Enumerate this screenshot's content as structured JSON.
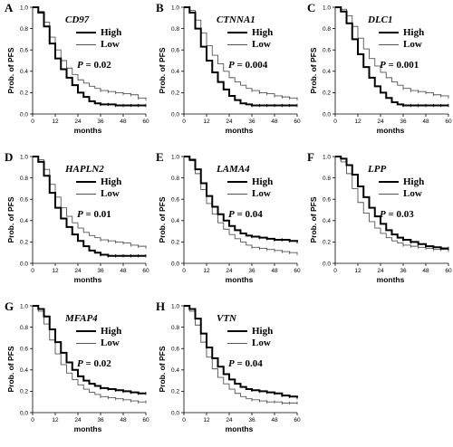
{
  "figure": {
    "x_tick_labels": [
      "0",
      "12",
      "24",
      "36",
      "48",
      "60"
    ],
    "y_tick_labels": [
      "0.0",
      "0.2",
      "0.4",
      "0.6",
      "0.8",
      "1.0"
    ]
  },
  "colors": {
    "high": "#000000",
    "low": "#555555"
  },
  "chart_data": [
    {
      "type": "line",
      "panel": "A",
      "gene": "CD97",
      "pvalue": "0.02",
      "xlabel": "months",
      "ylabel": "Prob. of PFS",
      "xlim": [
        0,
        60
      ],
      "ylim": [
        0,
        1
      ],
      "grid": false,
      "legend_position": "top-right",
      "series": [
        {
          "name": "High",
          "style": "thick",
          "x": [
            0,
            3,
            6,
            9,
            12,
            15,
            18,
            21,
            24,
            27,
            30,
            33,
            36,
            40,
            44,
            48,
            52,
            56,
            60
          ],
          "y": [
            1.0,
            0.95,
            0.82,
            0.66,
            0.52,
            0.42,
            0.34,
            0.27,
            0.2,
            0.16,
            0.12,
            0.1,
            0.09,
            0.09,
            0.08,
            0.08,
            0.08,
            0.08,
            0.08
          ]
        },
        {
          "name": "Low",
          "style": "thin",
          "x": [
            0,
            3,
            6,
            9,
            12,
            15,
            18,
            21,
            24,
            27,
            30,
            33,
            36,
            40,
            44,
            48,
            52,
            56,
            60
          ],
          "y": [
            1.0,
            0.96,
            0.86,
            0.72,
            0.6,
            0.5,
            0.43,
            0.37,
            0.32,
            0.29,
            0.26,
            0.24,
            0.22,
            0.21,
            0.2,
            0.19,
            0.18,
            0.15,
            0.14
          ]
        }
      ]
    },
    {
      "type": "line",
      "panel": "B",
      "gene": "CTNNA1",
      "pvalue": "0.004",
      "xlabel": "months",
      "ylabel": "Prob. of PFS",
      "xlim": [
        0,
        60
      ],
      "ylim": [
        0,
        1
      ],
      "grid": false,
      "legend_position": "top-right",
      "series": [
        {
          "name": "High",
          "style": "thick",
          "x": [
            0,
            3,
            6,
            9,
            12,
            15,
            18,
            21,
            24,
            27,
            30,
            33,
            36,
            40,
            44,
            48,
            52,
            56,
            60
          ],
          "y": [
            1.0,
            0.95,
            0.8,
            0.63,
            0.5,
            0.39,
            0.3,
            0.23,
            0.17,
            0.13,
            0.1,
            0.09,
            0.08,
            0.08,
            0.08,
            0.08,
            0.08,
            0.08,
            0.08
          ]
        },
        {
          "name": "Low",
          "style": "thin",
          "x": [
            0,
            3,
            6,
            9,
            12,
            15,
            18,
            21,
            24,
            27,
            30,
            33,
            36,
            40,
            44,
            48,
            52,
            56,
            60
          ],
          "y": [
            1.0,
            0.97,
            0.88,
            0.76,
            0.64,
            0.55,
            0.47,
            0.4,
            0.34,
            0.3,
            0.27,
            0.24,
            0.22,
            0.2,
            0.19,
            0.17,
            0.16,
            0.15,
            0.14
          ]
        }
      ]
    },
    {
      "type": "line",
      "panel": "C",
      "gene": "DLC1",
      "pvalue": "0.001",
      "xlabel": "months",
      "ylabel": "Prob. of PFS",
      "xlim": [
        0,
        60
      ],
      "ylim": [
        0,
        1
      ],
      "grid": false,
      "legend_position": "top-right",
      "series": [
        {
          "name": "High",
          "style": "thick",
          "x": [
            0,
            3,
            6,
            9,
            12,
            15,
            18,
            21,
            24,
            27,
            30,
            33,
            36,
            40,
            44,
            48,
            52,
            56,
            60
          ],
          "y": [
            1.0,
            0.96,
            0.85,
            0.7,
            0.56,
            0.44,
            0.34,
            0.26,
            0.2,
            0.15,
            0.11,
            0.09,
            0.08,
            0.08,
            0.08,
            0.08,
            0.08,
            0.08,
            0.08
          ]
        },
        {
          "name": "Low",
          "style": "thin",
          "x": [
            0,
            3,
            6,
            9,
            12,
            15,
            18,
            21,
            24,
            27,
            30,
            33,
            36,
            40,
            44,
            48,
            52,
            56,
            60
          ],
          "y": [
            1.0,
            0.98,
            0.92,
            0.82,
            0.71,
            0.61,
            0.52,
            0.45,
            0.39,
            0.34,
            0.3,
            0.27,
            0.24,
            0.22,
            0.21,
            0.2,
            0.18,
            0.17,
            0.16
          ]
        }
      ]
    },
    {
      "type": "line",
      "panel": "D",
      "gene": "HAPLN2",
      "pvalue": "0.01",
      "xlabel": "months",
      "ylabel": "Prob. of PFS",
      "xlim": [
        0,
        60
      ],
      "ylim": [
        0,
        1
      ],
      "grid": false,
      "legend_position": "top-right",
      "series": [
        {
          "name": "High",
          "style": "thick",
          "x": [
            0,
            3,
            6,
            9,
            12,
            15,
            18,
            21,
            24,
            27,
            30,
            33,
            36,
            40,
            44,
            48,
            52,
            56,
            60
          ],
          "y": [
            1.0,
            0.95,
            0.82,
            0.66,
            0.52,
            0.42,
            0.34,
            0.27,
            0.21,
            0.16,
            0.12,
            0.1,
            0.08,
            0.07,
            0.07,
            0.07,
            0.07,
            0.07,
            0.07
          ]
        },
        {
          "name": "Low",
          "style": "thin",
          "x": [
            0,
            3,
            6,
            9,
            12,
            15,
            18,
            21,
            24,
            27,
            30,
            33,
            36,
            40,
            44,
            48,
            52,
            56,
            60
          ],
          "y": [
            1.0,
            0.97,
            0.88,
            0.74,
            0.62,
            0.52,
            0.44,
            0.38,
            0.33,
            0.29,
            0.26,
            0.24,
            0.22,
            0.21,
            0.2,
            0.19,
            0.17,
            0.16,
            0.15
          ]
        }
      ]
    },
    {
      "type": "line",
      "panel": "E",
      "gene": "LAMA4",
      "pvalue": "0.04",
      "xlabel": "months",
      "ylabel": "Prob. of PFS",
      "xlim": [
        0,
        60
      ],
      "ylim": [
        0,
        1
      ],
      "grid": false,
      "legend_position": "top-right",
      "series": [
        {
          "name": "High",
          "style": "thick",
          "x": [
            0,
            3,
            6,
            9,
            12,
            15,
            18,
            21,
            24,
            27,
            30,
            33,
            36,
            40,
            44,
            48,
            52,
            56,
            60
          ],
          "y": [
            1.0,
            0.97,
            0.88,
            0.75,
            0.63,
            0.53,
            0.46,
            0.4,
            0.35,
            0.31,
            0.28,
            0.26,
            0.25,
            0.24,
            0.23,
            0.22,
            0.22,
            0.21,
            0.2
          ]
        },
        {
          "name": "Low",
          "style": "thin",
          "x": [
            0,
            3,
            6,
            9,
            12,
            15,
            18,
            21,
            24,
            27,
            30,
            33,
            36,
            40,
            44,
            48,
            52,
            56,
            60
          ],
          "y": [
            1.0,
            0.96,
            0.84,
            0.69,
            0.56,
            0.46,
            0.38,
            0.32,
            0.27,
            0.23,
            0.2,
            0.17,
            0.15,
            0.14,
            0.13,
            0.12,
            0.11,
            0.1,
            0.09
          ]
        }
      ]
    },
    {
      "type": "line",
      "panel": "F",
      "gene": "LPP",
      "pvalue": "0.03",
      "xlabel": "months",
      "ylabel": "Prob. of PFS",
      "xlim": [
        0,
        60
      ],
      "ylim": [
        0,
        1
      ],
      "grid": false,
      "legend_position": "top-right",
      "series": [
        {
          "name": "High",
          "style": "thick",
          "x": [
            0,
            3,
            6,
            9,
            12,
            15,
            18,
            21,
            24,
            27,
            30,
            33,
            36,
            40,
            44,
            48,
            52,
            56,
            60
          ],
          "y": [
            1.0,
            0.98,
            0.92,
            0.83,
            0.72,
            0.62,
            0.52,
            0.44,
            0.37,
            0.31,
            0.27,
            0.24,
            0.22,
            0.2,
            0.18,
            0.16,
            0.15,
            0.14,
            0.14
          ]
        },
        {
          "name": "Low",
          "style": "thin",
          "x": [
            0,
            3,
            6,
            9,
            12,
            15,
            18,
            21,
            24,
            27,
            30,
            33,
            36,
            40,
            44,
            48,
            52,
            56,
            60
          ],
          "y": [
            1.0,
            0.95,
            0.84,
            0.7,
            0.57,
            0.47,
            0.39,
            0.33,
            0.28,
            0.24,
            0.21,
            0.19,
            0.17,
            0.16,
            0.15,
            0.14,
            0.13,
            0.13,
            0.12
          ]
        }
      ]
    },
    {
      "type": "line",
      "panel": "G",
      "gene": "MFAP4",
      "pvalue": "0.02",
      "xlabel": "months",
      "ylabel": "Prob. of PFS",
      "xlim": [
        0,
        60
      ],
      "ylim": [
        0,
        1
      ],
      "grid": false,
      "legend_position": "top-right",
      "series": [
        {
          "name": "High",
          "style": "thick",
          "x": [
            0,
            3,
            6,
            9,
            12,
            15,
            18,
            21,
            24,
            27,
            30,
            33,
            36,
            40,
            44,
            48,
            52,
            56,
            60
          ],
          "y": [
            1.0,
            0.97,
            0.9,
            0.78,
            0.66,
            0.56,
            0.47,
            0.4,
            0.34,
            0.3,
            0.27,
            0.25,
            0.23,
            0.22,
            0.21,
            0.2,
            0.19,
            0.18,
            0.18
          ]
        },
        {
          "name": "Low",
          "style": "thin",
          "x": [
            0,
            3,
            6,
            9,
            12,
            15,
            18,
            21,
            24,
            27,
            30,
            33,
            36,
            40,
            44,
            48,
            52,
            56,
            60
          ],
          "y": [
            1.0,
            0.95,
            0.83,
            0.68,
            0.55,
            0.45,
            0.37,
            0.31,
            0.26,
            0.22,
            0.19,
            0.17,
            0.15,
            0.14,
            0.13,
            0.12,
            0.11,
            0.1,
            0.1
          ]
        }
      ]
    },
    {
      "type": "line",
      "panel": "H",
      "gene": "VTN",
      "pvalue": "0.04",
      "xlabel": "months",
      "ylabel": "Prob. of PFS",
      "xlim": [
        0,
        60
      ],
      "ylim": [
        0,
        1
      ],
      "grid": false,
      "legend_position": "top-right",
      "series": [
        {
          "name": "High",
          "style": "thick",
          "x": [
            0,
            3,
            6,
            9,
            12,
            15,
            18,
            21,
            24,
            27,
            30,
            33,
            36,
            40,
            44,
            48,
            52,
            56,
            60
          ],
          "y": [
            1.0,
            0.97,
            0.88,
            0.74,
            0.61,
            0.51,
            0.43,
            0.36,
            0.31,
            0.27,
            0.24,
            0.22,
            0.21,
            0.2,
            0.19,
            0.18,
            0.16,
            0.15,
            0.14
          ]
        },
        {
          "name": "Low",
          "style": "thin",
          "x": [
            0,
            3,
            6,
            9,
            12,
            15,
            18,
            21,
            24,
            27,
            30,
            33,
            36,
            40,
            44,
            48,
            52,
            56,
            60
          ],
          "y": [
            1.0,
            0.95,
            0.82,
            0.66,
            0.52,
            0.41,
            0.33,
            0.27,
            0.22,
            0.18,
            0.15,
            0.13,
            0.12,
            0.11,
            0.1,
            0.1,
            0.09,
            0.09,
            0.09
          ]
        }
      ]
    }
  ]
}
